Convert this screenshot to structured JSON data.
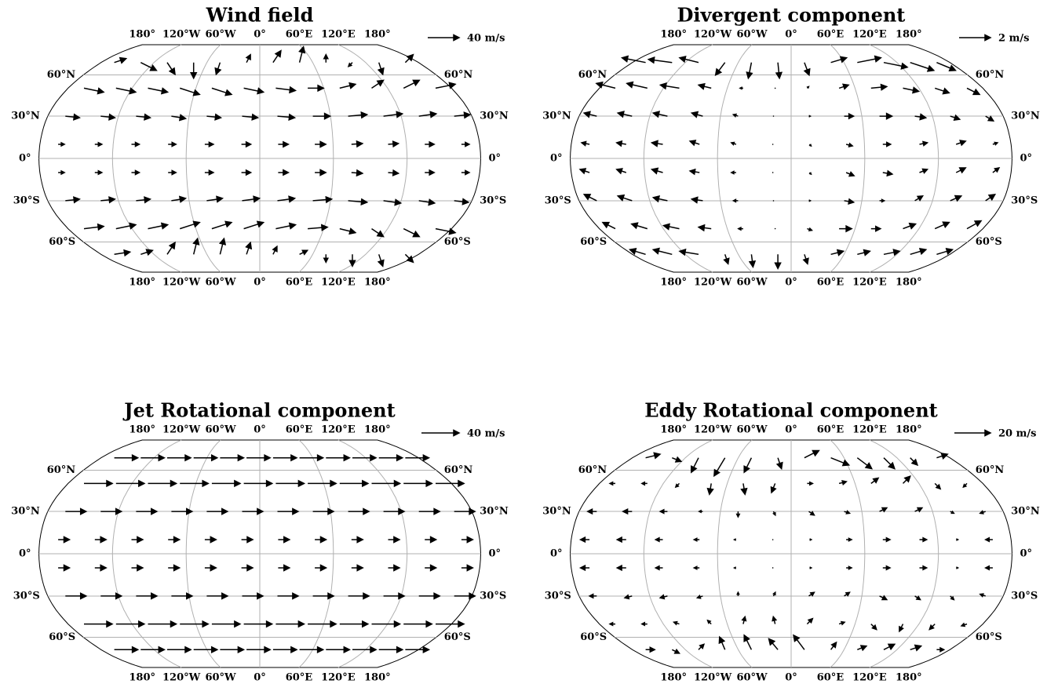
{
  "chart_data": [
    {
      "type": "quiver",
      "title": "Wind field",
      "key": {
        "value": 40,
        "label": "40 m/s"
      },
      "lon_ticks": [
        {
          "value": -180,
          "label": "180°"
        },
        {
          "value": -120,
          "label": "120°W"
        },
        {
          "value": -60,
          "label": "60°W"
        },
        {
          "value": 0,
          "label": "0°"
        },
        {
          "value": 60,
          "label": "60°E"
        },
        {
          "value": 120,
          "label": "120°E"
        },
        {
          "value": 180,
          "label": "180°"
        }
      ],
      "lat_ticks": [
        {
          "value": 60,
          "label": "60°N"
        },
        {
          "value": 30,
          "label": "30°N"
        },
        {
          "value": 0,
          "label": "0°"
        },
        {
          "value": -30,
          "label": "30°S"
        },
        {
          "value": -60,
          "label": "60°S"
        }
      ],
      "lons": [
        -165,
        -135,
        -105,
        -75,
        -45,
        -15,
        15,
        45,
        75,
        105,
        135,
        165
      ],
      "lats": [
        70,
        50,
        30,
        10,
        -10,
        -30,
        -50,
        -70
      ],
      "u": [
        [
          15,
          20,
          10,
          0,
          -5,
          5,
          10,
          5,
          0,
          -5,
          5,
          10
        ],
        [
          25,
          25,
          25,
          25,
          25,
          25,
          25,
          20,
          20,
          15,
          20,
          25
        ],
        [
          18,
          18,
          18,
          18,
          18,
          20,
          22,
          22,
          24,
          24,
          22,
          20
        ],
        [
          8,
          9,
          10,
          10,
          11,
          12,
          13,
          14,
          14,
          13,
          12,
          10
        ],
        [
          8,
          9,
          10,
          10,
          11,
          12,
          13,
          14,
          14,
          13,
          12,
          10
        ],
        [
          18,
          18,
          18,
          18,
          20,
          22,
          22,
          24,
          24,
          22,
          20,
          18
        ],
        [
          25,
          25,
          25,
          25,
          25,
          25,
          25,
          25,
          20,
          15,
          20,
          25
        ],
        [
          20,
          15,
          10,
          5,
          5,
          5,
          5,
          10,
          0,
          0,
          5,
          10
        ]
      ],
      "v": [
        [
          5,
          -10,
          -15,
          -20,
          -15,
          10,
          15,
          20,
          10,
          -5,
          -15,
          10
        ],
        [
          -5,
          -5,
          -5,
          -8,
          -8,
          -5,
          -3,
          0,
          5,
          10,
          10,
          5
        ],
        [
          -2,
          -2,
          -2,
          -3,
          -2,
          -2,
          -2,
          0,
          2,
          3,
          3,
          2
        ],
        [
          0,
          0,
          0,
          0,
          0,
          0,
          0,
          0,
          1,
          1,
          0,
          0
        ],
        [
          0,
          0,
          0,
          0,
          0,
          0,
          0,
          0,
          -1,
          -1,
          0,
          0
        ],
        [
          2,
          2,
          2,
          3,
          3,
          3,
          3,
          2,
          -2,
          -3,
          -3,
          -2
        ],
        [
          3,
          5,
          5,
          8,
          8,
          8,
          5,
          2,
          -5,
          -10,
          -10,
          -5
        ],
        [
          3,
          5,
          15,
          20,
          20,
          15,
          10,
          5,
          -10,
          -15,
          -15,
          -10
        ]
      ]
    },
    {
      "type": "quiver",
      "title": "Divergent component",
      "key": {
        "value": 2,
        "label": "2 m/s"
      },
      "lon_ticks": [
        {
          "value": -180,
          "label": "180°"
        },
        {
          "value": -120,
          "label": "120°W"
        },
        {
          "value": -60,
          "label": "60°W"
        },
        {
          "value": 0,
          "label": "0°"
        },
        {
          "value": 60,
          "label": "60°E"
        },
        {
          "value": 120,
          "label": "120°E"
        },
        {
          "value": 180,
          "label": "180°"
        }
      ],
      "lat_ticks": [
        {
          "value": 60,
          "label": "60°N"
        },
        {
          "value": 30,
          "label": "30°N"
        },
        {
          "value": 0,
          "label": "0°"
        },
        {
          "value": -30,
          "label": "30°S"
        },
        {
          "value": -60,
          "label": "60°S"
        }
      ],
      "lons": [
        -165,
        -135,
        -105,
        -75,
        -45,
        -15,
        15,
        45,
        75,
        105,
        135,
        165
      ],
      "lats": [
        70,
        50,
        30,
        10,
        -10,
        -30,
        -50,
        -70
      ],
      "u": [
        [
          -1.5,
          -1.5,
          -1.2,
          -0.6,
          -0.2,
          0.1,
          0.3,
          1.0,
          1.5,
          1.5,
          1.5,
          1.2
        ],
        [
          -1.2,
          -1.3,
          -1.2,
          -0.8,
          -0.2,
          0.0,
          0.1,
          0.6,
          1.0,
          1.0,
          0.9,
          0.8
        ],
        [
          -0.8,
          -0.9,
          -0.9,
          -0.7,
          -0.3,
          0.0,
          0.1,
          0.6,
          0.8,
          0.7,
          0.6,
          0.5
        ],
        [
          -0.5,
          -0.6,
          -0.7,
          -0.6,
          -0.3,
          0.0,
          0.1,
          0.4,
          0.5,
          0.5,
          0.6,
          0.3
        ],
        [
          -0.6,
          -0.6,
          -0.7,
          -0.6,
          -0.3,
          0.0,
          0.1,
          0.5,
          0.6,
          0.5,
          0.6,
          0.4
        ],
        [
          -0.8,
          -0.9,
          -0.9,
          -0.7,
          -0.3,
          0.0,
          0.1,
          0.6,
          0.3,
          0.5,
          0.7,
          0.6
        ],
        [
          -0.8,
          -1.0,
          -1.0,
          -0.8,
          -0.3,
          0.0,
          0.3,
          0.8,
          0.6,
          0.8,
          0.9,
          0.9
        ],
        [
          -1.0,
          -1.2,
          -1.2,
          0.2,
          0.1,
          0.0,
          0.2,
          0.8,
          0.8,
          1.0,
          1.0,
          1.0
        ]
      ],
      "v": [
        [
          0.3,
          0.2,
          0.3,
          -0.8,
          -1.0,
          -1.0,
          -0.8,
          0.3,
          0.3,
          -0.3,
          -0.5,
          -0.5
        ],
        [
          0.3,
          0.3,
          0.2,
          0.2,
          0.0,
          0.0,
          0.1,
          0.2,
          0.1,
          -0.2,
          -0.3,
          -0.4
        ],
        [
          0.2,
          0.2,
          0.2,
          0.2,
          0.1,
          0,
          0,
          0,
          0,
          -0.1,
          -0.2,
          -0.3
        ],
        [
          0.1,
          0.1,
          0.1,
          0.2,
          0.1,
          0,
          -0.1,
          -0.1,
          0,
          0.1,
          0.2,
          0.1
        ],
        [
          0.2,
          0.2,
          0.2,
          0.1,
          0,
          0,
          -0.1,
          -0.2,
          -0.1,
          0.2,
          0.3,
          0.3
        ],
        [
          0.4,
          0.3,
          0.2,
          0.1,
          0.0,
          0,
          0,
          -0.1,
          0,
          0.3,
          0.3,
          0.4
        ],
        [
          0.4,
          0.3,
          0.2,
          0.1,
          0.0,
          0,
          -0.1,
          0,
          0,
          0.3,
          0.4,
          0.5
        ],
        [
          0.3,
          0.3,
          0.2,
          -0.6,
          -0.8,
          -0.9,
          -0.6,
          0.2,
          0.2,
          0.2,
          0.3,
          0.3
        ]
      ]
    },
    {
      "type": "quiver",
      "title": "Jet Rotational component",
      "key": {
        "value": 40,
        "label": "40 m/s"
      },
      "lon_ticks": [
        {
          "value": -180,
          "label": "180°"
        },
        {
          "value": -120,
          "label": "120°W"
        },
        {
          "value": -60,
          "label": "60°W"
        },
        {
          "value": 0,
          "label": "0°"
        },
        {
          "value": 60,
          "label": "60°E"
        },
        {
          "value": 120,
          "label": "120°E"
        },
        {
          "value": 180,
          "label": "180°"
        }
      ],
      "lat_ticks": [
        {
          "value": 60,
          "label": "60°N"
        },
        {
          "value": 30,
          "label": "30°N"
        },
        {
          "value": 0,
          "label": "0°"
        },
        {
          "value": -30,
          "label": "30°S"
        },
        {
          "value": -60,
          "label": "60°S"
        }
      ],
      "lons": [
        -165,
        -135,
        -105,
        -75,
        -45,
        -15,
        15,
        45,
        75,
        105,
        135,
        165
      ],
      "lats": [
        70,
        50,
        30,
        10,
        -10,
        -30,
        -50,
        -70
      ],
      "u": [
        [
          25,
          25,
          25,
          25,
          25,
          25,
          25,
          25,
          25,
          25,
          25,
          25
        ],
        [
          30,
          30,
          30,
          30,
          30,
          30,
          30,
          30,
          30,
          30,
          30,
          30
        ],
        [
          22,
          22,
          22,
          22,
          22,
          22,
          22,
          22,
          22,
          22,
          22,
          22
        ],
        [
          12,
          12,
          12,
          12,
          12,
          12,
          12,
          12,
          12,
          12,
          12,
          12
        ],
        [
          12,
          12,
          12,
          12,
          12,
          12,
          12,
          12,
          12,
          12,
          12,
          12
        ],
        [
          22,
          22,
          22,
          22,
          22,
          22,
          22,
          22,
          22,
          22,
          22,
          22
        ],
        [
          30,
          30,
          30,
          30,
          30,
          30,
          30,
          30,
          30,
          30,
          30,
          30
        ],
        [
          25,
          25,
          25,
          25,
          25,
          25,
          25,
          25,
          25,
          25,
          25,
          25
        ]
      ],
      "v": [
        [
          0,
          0,
          0,
          0,
          0,
          0,
          0,
          0,
          0,
          0,
          0,
          0
        ],
        [
          0,
          0,
          0,
          0,
          0,
          0,
          0,
          0,
          0,
          0,
          0,
          0
        ],
        [
          0,
          0,
          0,
          0,
          0,
          0,
          0,
          0,
          0,
          0,
          0,
          0
        ],
        [
          0,
          0,
          0,
          0,
          0,
          0,
          0,
          0,
          0,
          0,
          0,
          0
        ],
        [
          0,
          0,
          0,
          0,
          0,
          0,
          0,
          0,
          0,
          0,
          0,
          0
        ],
        [
          0,
          0,
          0,
          0,
          0,
          0,
          0,
          0,
          0,
          0,
          0,
          0
        ],
        [
          0,
          0,
          0,
          0,
          0,
          0,
          0,
          0,
          0,
          0,
          0,
          0
        ],
        [
          0,
          0,
          0,
          0,
          0,
          0,
          0,
          0,
          0,
          0,
          0,
          0
        ]
      ]
    },
    {
      "type": "quiver",
      "title": "Eddy Rotational component",
      "key": {
        "value": 20,
        "label": "20 m/s"
      },
      "lon_ticks": [
        {
          "value": -180,
          "label": "180°"
        },
        {
          "value": -120,
          "label": "120°W"
        },
        {
          "value": -60,
          "label": "60°W"
        },
        {
          "value": 0,
          "label": "0°"
        },
        {
          "value": 60,
          "label": "60°E"
        },
        {
          "value": 120,
          "label": "120°E"
        },
        {
          "value": 180,
          "label": "180°"
        }
      ],
      "lat_ticks": [
        {
          "value": 60,
          "label": "60°N"
        },
        {
          "value": 30,
          "label": "30°N"
        },
        {
          "value": 0,
          "label": "0°"
        },
        {
          "value": -30,
          "label": "30°S"
        },
        {
          "value": -60,
          "label": "60°S"
        }
      ],
      "lons": [
        -165,
        -135,
        -105,
        -75,
        -45,
        -15,
        15,
        45,
        75,
        105,
        135,
        165
      ],
      "lats": [
        70,
        50,
        30,
        10,
        -10,
        -30,
        -50,
        -70
      ],
      "u": [
        [
          8,
          5,
          -4,
          -6,
          -4,
          2,
          8,
          10,
          8,
          6,
          4,
          6
        ],
        [
          -3,
          -3,
          -2,
          -1,
          1,
          -2,
          3,
          4,
          4,
          4,
          3,
          -2
        ],
        [
          -5,
          -5,
          -4,
          -2,
          0,
          1,
          3,
          3,
          4,
          4,
          2,
          -3
        ],
        [
          -5,
          -5,
          -4,
          -3,
          -1,
          0,
          1,
          3,
          4,
          4,
          1,
          -4
        ],
        [
          -5,
          -5,
          -4,
          -3,
          -1,
          0,
          1,
          3,
          4,
          4,
          1,
          -4
        ],
        [
          -4,
          -4,
          -4,
          -3,
          0,
          1,
          3,
          3,
          4,
          3,
          2,
          -3
        ],
        [
          -3,
          -3,
          -3,
          -2,
          1,
          -1,
          3,
          3,
          3,
          -2,
          -3,
          -3
        ],
        [
          5,
          4,
          3,
          -3,
          -4,
          -5,
          -6,
          3,
          5,
          6,
          6,
          4
        ]
      ],
      "v": [
        [
          2,
          -2,
          -8,
          -10,
          -8,
          -6,
          4,
          -4,
          -6,
          -6,
          -4,
          2
        ],
        [
          0,
          0,
          -2,
          -6,
          -6,
          -5,
          0,
          1,
          3,
          4,
          -3,
          -2
        ],
        [
          0,
          0,
          0,
          0,
          -3,
          -2,
          -2,
          -1,
          2,
          2,
          -1,
          -1
        ],
        [
          0,
          0,
          0,
          0,
          0,
          0,
          0,
          0,
          0,
          0,
          0,
          0
        ],
        [
          0,
          0,
          0,
          0,
          0,
          0,
          0,
          0,
          0,
          0,
          0,
          0
        ],
        [
          0,
          -1,
          -1,
          -1,
          2,
          2,
          2,
          2,
          -2,
          -2,
          -2,
          1
        ],
        [
          0,
          0,
          1,
          2,
          4,
          4,
          3,
          1,
          -3,
          -4,
          -3,
          -1
        ],
        [
          0,
          -2,
          3,
          7,
          8,
          6,
          8,
          4,
          2,
          3,
          2,
          0
        ]
      ]
    }
  ]
}
